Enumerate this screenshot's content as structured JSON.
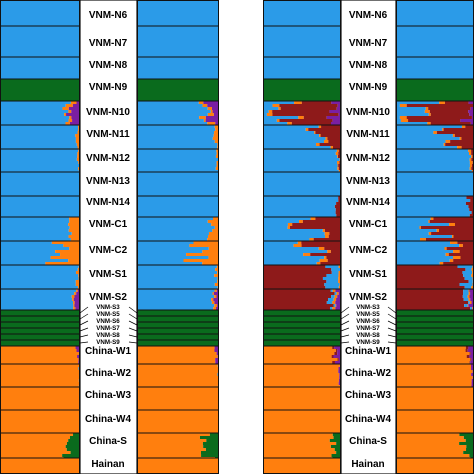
{
  "chart_data": {
    "type": "bar",
    "stacked": true,
    "orientation": "horizontal",
    "panels": [
      "left",
      "right"
    ],
    "clusters": [
      {
        "name": "",
        "color": "#2b9be8"
      },
      {
        "name": "",
        "color": "#ff7f0e"
      },
      {
        "name": "",
        "color": "#0a6b1d"
      },
      {
        "name": "",
        "color": "#8e1a1a"
      },
      {
        "name": "",
        "color": "#7a1fa2"
      }
    ],
    "populations": [
      {
        "label": "VNM-N6",
        "left": {
          "base": 0,
          "K": [
            1.0,
            0.0,
            0.0,
            0.0,
            0.0
          ]
        },
        "right": {
          "base": 0,
          "K": [
            1.0,
            0.0,
            0.0,
            0.0,
            0.0
          ]
        }
      },
      {
        "label": "VNM-N7",
        "left": {
          "base": 0,
          "K": [
            1.0,
            0.0,
            0.0,
            0.0,
            0.0
          ]
        },
        "right": {
          "base": 0,
          "K": [
            1.0,
            0.0,
            0.0,
            0.0,
            0.0
          ]
        }
      },
      {
        "label": "VNM-N8",
        "left": {
          "base": 0,
          "K": [
            1.0,
            0.0,
            0.0,
            0.0,
            0.0
          ]
        },
        "right": {
          "base": 0,
          "K": [
            1.0,
            0.0,
            0.0,
            0.0,
            0.0
          ]
        }
      },
      {
        "label": "VNM-N9",
        "left": {
          "base": 2,
          "K": [
            0.0,
            0.0,
            1.0,
            0.0,
            0.0
          ]
        },
        "right": {
          "base": 2,
          "K": [
            0.0,
            0.0,
            1.0,
            0.0,
            0.0
          ]
        }
      },
      {
        "label": "VNM-N10",
        "left": {
          "base": 0,
          "K": [
            0.85,
            0.05,
            0.0,
            0.0,
            0.1
          ]
        },
        "right": {
          "base": 0,
          "K": [
            0.4,
            0.05,
            0.0,
            0.45,
            0.1
          ]
        }
      },
      {
        "label": "VNM-N11",
        "left": {
          "base": 0,
          "K": [
            0.96,
            0.04,
            0.0,
            0.0,
            0.0
          ]
        },
        "right": {
          "base": 0,
          "K": [
            0.72,
            0.03,
            0.0,
            0.25,
            0.0
          ]
        }
      },
      {
        "label": "VNM-N12",
        "left": {
          "base": 0,
          "K": [
            0.98,
            0.02,
            0.0,
            0.0,
            0.0
          ]
        },
        "right": {
          "base": 0,
          "K": [
            0.96,
            0.02,
            0.0,
            0.02,
            0.0
          ]
        }
      },
      {
        "label": "VNM-N13",
        "left": {
          "base": 0,
          "K": [
            1.0,
            0.0,
            0.0,
            0.0,
            0.0
          ]
        },
        "right": {
          "base": 0,
          "K": [
            1.0,
            0.0,
            0.0,
            0.0,
            0.0
          ]
        }
      },
      {
        "label": "VNM-N14",
        "left": {
          "base": 0,
          "K": [
            1.0,
            0.0,
            0.0,
            0.0,
            0.0
          ]
        },
        "right": {
          "base": 0,
          "K": [
            0.94,
            0.0,
            0.0,
            0.06,
            0.0
          ]
        }
      },
      {
        "label": "VNM-C1",
        "left": {
          "base": 0,
          "K": [
            0.92,
            0.08,
            0.0,
            0.0,
            0.0
          ]
        },
        "right": {
          "base": 0,
          "K": [
            0.62,
            0.04,
            0.0,
            0.34,
            0.0
          ]
        }
      },
      {
        "label": "VNM-C2",
        "left": {
          "base": 0,
          "K": [
            0.78,
            0.22,
            0.0,
            0.0,
            0.0
          ]
        },
        "right": {
          "base": 0,
          "K": [
            0.68,
            0.06,
            0.0,
            0.26,
            0.0
          ]
        }
      },
      {
        "label": "VNM-S1",
        "left": {
          "base": 0,
          "K": [
            0.97,
            0.03,
            0.0,
            0.0,
            0.0
          ]
        },
        "right": {
          "base": 3,
          "K": [
            0.1,
            0.02,
            0.0,
            0.88,
            0.0
          ]
        }
      },
      {
        "label": "VNM-S2",
        "left": {
          "base": 0,
          "K": [
            0.94,
            0.02,
            0.0,
            0.0,
            0.04
          ]
        },
        "right": {
          "base": 3,
          "K": [
            0.04,
            0.02,
            0.0,
            0.9,
            0.04
          ]
        }
      },
      {
        "label": "VNM-S3",
        "left": {
          "base": 2,
          "K": [
            0.0,
            0.0,
            1.0,
            0.0,
            0.0
          ]
        },
        "right": {
          "base": 2,
          "K": [
            0.0,
            0.0,
            1.0,
            0.0,
            0.0
          ]
        }
      },
      {
        "label": "VNM-S5",
        "left": {
          "base": 2,
          "K": [
            0.0,
            0.0,
            1.0,
            0.0,
            0.0
          ]
        },
        "right": {
          "base": 2,
          "K": [
            0.0,
            0.0,
            1.0,
            0.0,
            0.0
          ]
        }
      },
      {
        "label": "VNM-S6",
        "left": {
          "base": 2,
          "K": [
            0.0,
            0.0,
            1.0,
            0.0,
            0.0
          ]
        },
        "right": {
          "base": 2,
          "K": [
            0.0,
            0.0,
            1.0,
            0.0,
            0.0
          ]
        }
      },
      {
        "label": "VNM-S7",
        "left": {
          "base": 2,
          "K": [
            0.0,
            0.0,
            1.0,
            0.0,
            0.0
          ]
        },
        "right": {
          "base": 2,
          "K": [
            0.0,
            0.0,
            1.0,
            0.0,
            0.0
          ]
        }
      },
      {
        "label": "VNM-S8",
        "left": {
          "base": 2,
          "K": [
            0.0,
            0.0,
            1.0,
            0.0,
            0.0
          ]
        },
        "right": {
          "base": 2,
          "K": [
            0.0,
            0.0,
            1.0,
            0.0,
            0.0
          ]
        }
      },
      {
        "label": "VNM-S9",
        "left": {
          "base": 2,
          "K": [
            0.0,
            0.0,
            1.0,
            0.0,
            0.0
          ]
        },
        "right": {
          "base": 2,
          "K": [
            0.0,
            0.0,
            1.0,
            0.0,
            0.0
          ]
        }
      },
      {
        "label": "China-W1",
        "left": {
          "base": 1,
          "K": [
            0.0,
            0.97,
            0.0,
            0.0,
            0.03
          ]
        },
        "right": {
          "base": 1,
          "K": [
            0.0,
            0.93,
            0.0,
            0.02,
            0.05
          ]
        }
      },
      {
        "label": "China-W2",
        "left": {
          "base": 1,
          "K": [
            0.01,
            0.99,
            0.0,
            0.0,
            0.0
          ]
        },
        "right": {
          "base": 1,
          "K": [
            0.0,
            0.98,
            0.0,
            0.0,
            0.02
          ]
        }
      },
      {
        "label": "China-W3",
        "left": {
          "base": 1,
          "K": [
            0.0,
            1.0,
            0.0,
            0.0,
            0.0
          ]
        },
        "right": {
          "base": 1,
          "K": [
            0.0,
            1.0,
            0.0,
            0.0,
            0.0
          ]
        }
      },
      {
        "label": "China-W4",
        "left": {
          "base": 1,
          "K": [
            0.0,
            1.0,
            0.0,
            0.0,
            0.0
          ]
        },
        "right": {
          "base": 1,
          "K": [
            0.0,
            1.0,
            0.0,
            0.0,
            0.0
          ]
        }
      },
      {
        "label": "China-S",
        "left": {
          "base": 1,
          "K": [
            0.0,
            0.88,
            0.12,
            0.0,
            0.0
          ]
        },
        "right": {
          "base": 1,
          "K": [
            0.0,
            0.9,
            0.1,
            0.0,
            0.0
          ]
        }
      },
      {
        "label": "Hainan",
        "left": {
          "base": 1,
          "K": [
            0.0,
            1.0,
            0.0,
            0.0,
            0.0
          ]
        },
        "right": {
          "base": 1,
          "K": [
            0.0,
            1.0,
            0.0,
            0.0,
            0.0
          ]
        }
      }
    ]
  }
}
